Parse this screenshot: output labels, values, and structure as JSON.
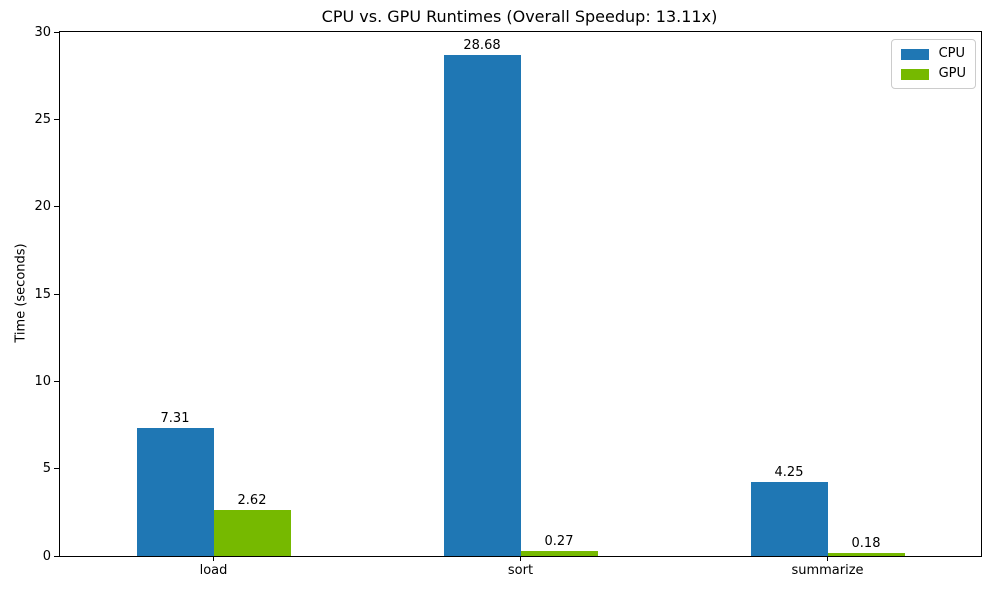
{
  "chart_data": {
    "type": "bar",
    "title": "CPU vs. GPU Runtimes (Overall Speedup: 13.11x)",
    "xlabel": "",
    "ylabel": "Time (seconds)",
    "categories": [
      "load",
      "sort",
      "summarize"
    ],
    "series": [
      {
        "name": "CPU",
        "color": "#1f77b4",
        "values": [
          7.31,
          28.68,
          4.25
        ],
        "labels": [
          "7.31",
          "28.68",
          "4.25"
        ]
      },
      {
        "name": "GPU",
        "color": "#76b900",
        "values": [
          2.62,
          0.27,
          0.18
        ],
        "labels": [
          "2.62",
          "0.27",
          "0.18"
        ]
      }
    ],
    "ylim": [
      0,
      30
    ],
    "yticks": [
      "0",
      "5",
      "10",
      "15",
      "20",
      "25",
      "30"
    ],
    "grid": false,
    "legend_position": "upper right",
    "frame": "full-box"
  }
}
